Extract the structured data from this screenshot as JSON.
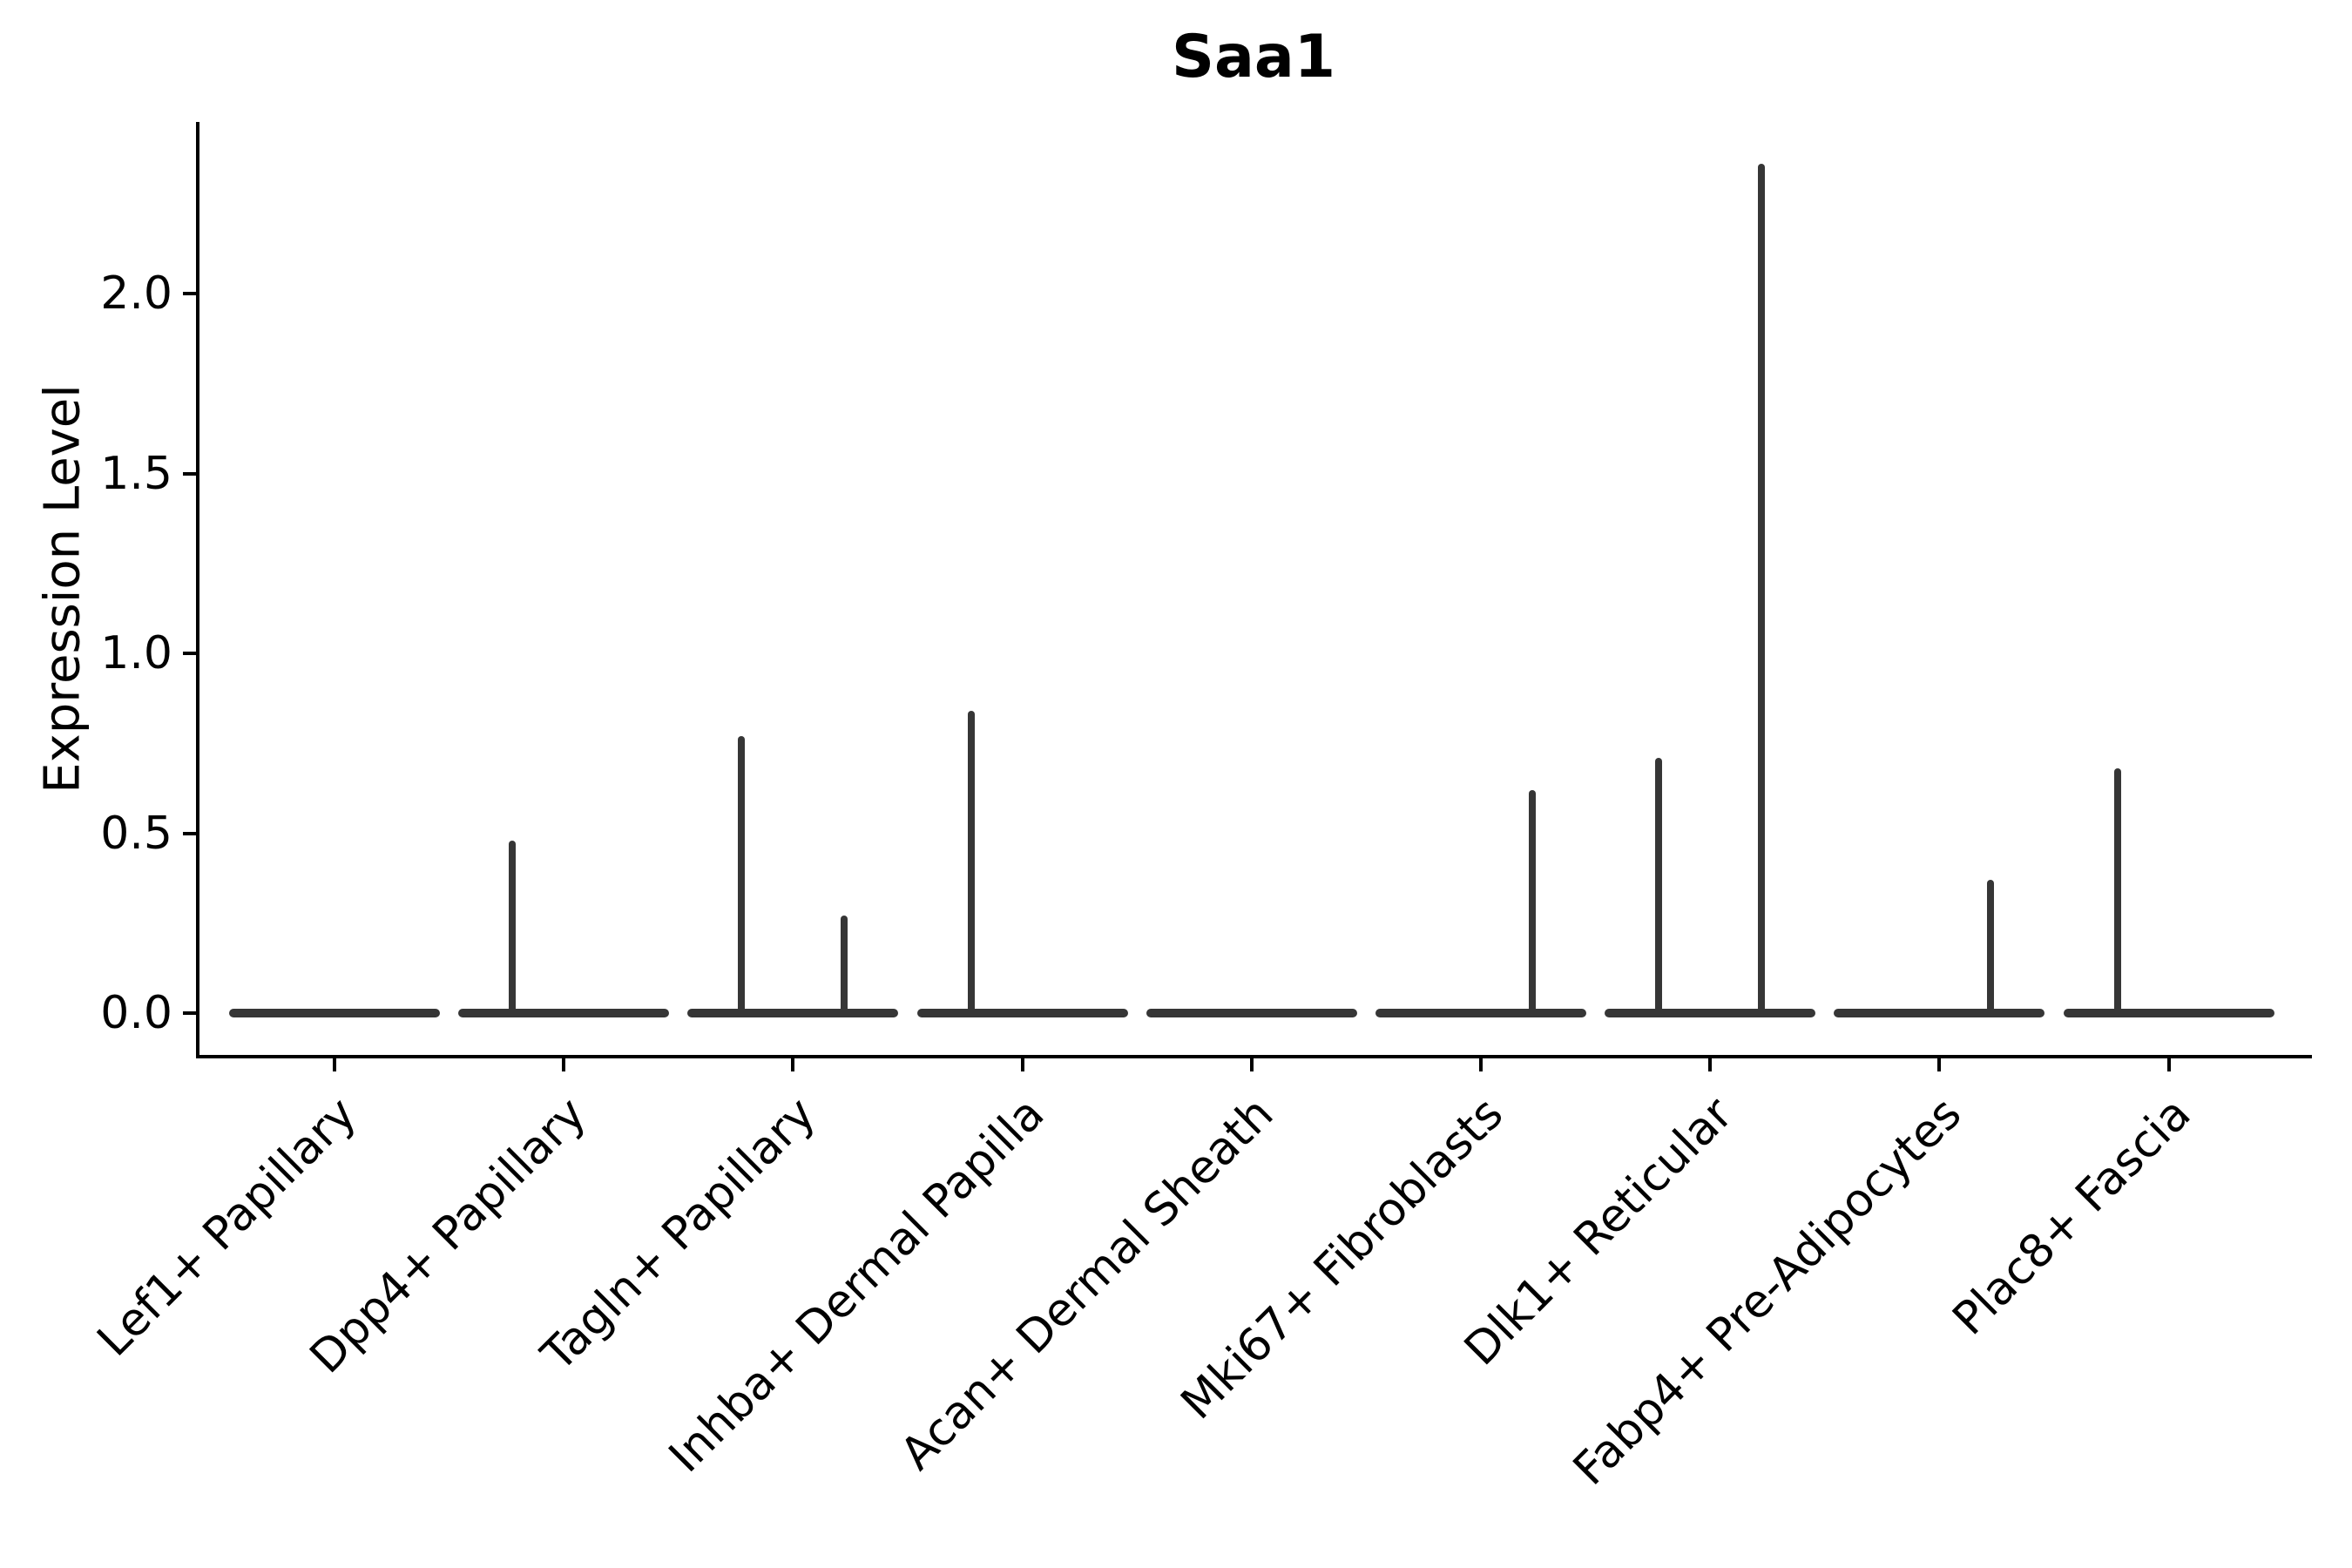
{
  "title": "Saa1",
  "y_axis": {
    "label": "Expression Level",
    "tick_labels": [
      "0.0",
      "0.5",
      "1.0",
      "1.5",
      "2.0"
    ]
  },
  "chart_data": {
    "type": "violin",
    "title": "Saa1",
    "ylabel": "Expression Level",
    "xlabel": "",
    "ylim": [
      -0.12,
      2.48
    ],
    "yticks": [
      0.0,
      0.5,
      1.0,
      1.5,
      2.0
    ],
    "grid": false,
    "legend": "none",
    "style": "split violin plot (two half-violins per category); expression is mostly zero so each violin collapses to a flat horizontal bar at 0 with a thin vertical spike reaching the maximum expression value",
    "categories": [
      "Lef1+ Papillary",
      "Dpp4+ Papillary",
      "Tagln+ Papillary",
      "Inhba+ Dermal Papilla",
      "Acan+ Dermal Sheath",
      "Mki67+ Fibroblasts",
      "Dlk1+ Reticular",
      "Fabp4+ Pre-Adipocytes",
      "Plac8+ Fascia"
    ],
    "violins": [
      {
        "category": "Lef1+ Papillary",
        "baseline": 0.0,
        "spikes": []
      },
      {
        "category": "Dpp4+ Papillary",
        "baseline": 0.0,
        "spikes": [
          {
            "side": "left",
            "max": 0.48
          }
        ]
      },
      {
        "category": "Tagln+ Papillary",
        "baseline": 0.0,
        "spikes": [
          {
            "side": "left",
            "max": 0.77
          },
          {
            "side": "right",
            "max": 0.27
          }
        ]
      },
      {
        "category": "Inhba+ Dermal Papilla",
        "baseline": 0.0,
        "spikes": [
          {
            "side": "left",
            "max": 0.84
          }
        ]
      },
      {
        "category": "Acan+ Dermal Sheath",
        "baseline": 0.0,
        "spikes": []
      },
      {
        "category": "Mki67+ Fibroblasts",
        "baseline": 0.0,
        "spikes": [
          {
            "side": "right",
            "max": 0.62
          }
        ]
      },
      {
        "category": "Dlk1+ Reticular",
        "baseline": 0.0,
        "spikes": [
          {
            "side": "left",
            "max": 0.71
          },
          {
            "side": "right",
            "max": 2.36
          }
        ]
      },
      {
        "category": "Fabp4+ Pre-Adipocytes",
        "baseline": 0.0,
        "spikes": [
          {
            "side": "right",
            "max": 0.37
          }
        ]
      },
      {
        "category": "Plac8+ Fascia",
        "baseline": 0.0,
        "spikes": [
          {
            "side": "left",
            "max": 0.68
          }
        ]
      }
    ],
    "colors": {
      "violin": "#363636",
      "axis": "#000000",
      "text": "#000000"
    }
  }
}
